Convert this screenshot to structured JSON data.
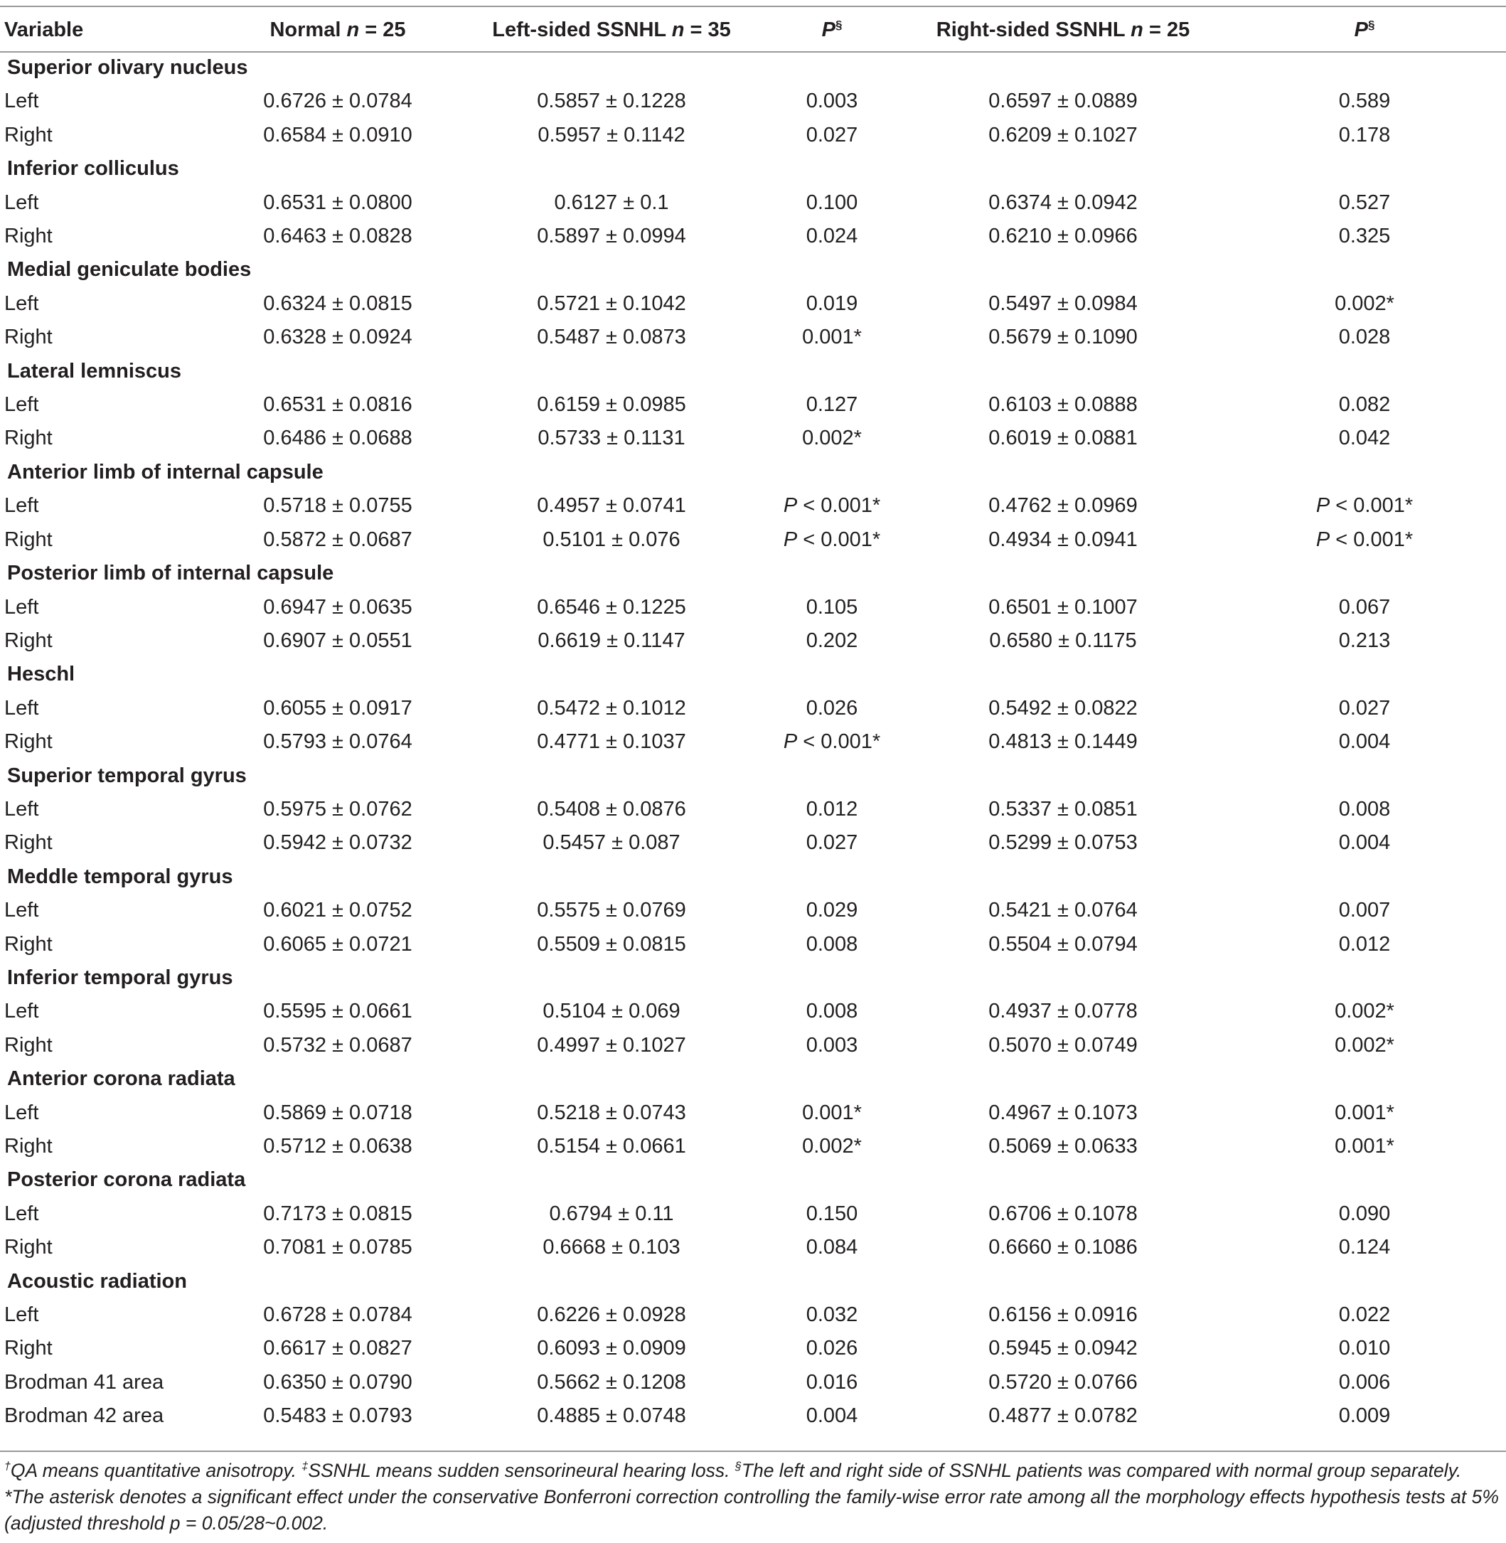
{
  "header": {
    "variable": "Variable",
    "normal": "Normal",
    "normal_n": "n",
    "normal_count": "= 25",
    "left": "Left-sided SSNHL",
    "left_n": "n",
    "left_count": "= 35",
    "p1": "P",
    "p1_mark": "§",
    "right": "Right-sided SSNHL",
    "right_n": "n",
    "right_count": "= 25",
    "p2": "P",
    "p2_mark": "§"
  },
  "groups": [
    {
      "title": "Superior olivary nucleus",
      "rows": [
        {
          "side": "Left",
          "normal": "0.6726 ± 0.0784",
          "left": "0.5857 ± 0.1228",
          "p1": "0.003",
          "right": "0.6597 ± 0.0889",
          "p2": "0.589"
        },
        {
          "side": "Right",
          "normal": "0.6584 ± 0.0910",
          "left": "0.5957 ± 0.1142",
          "p1": "0.027",
          "right": "0.6209 ± 0.1027",
          "p2": "0.178"
        }
      ]
    },
    {
      "title": "Inferior colliculus",
      "rows": [
        {
          "side": "Left",
          "normal": "0.6531 ± 0.0800",
          "left": "0.6127 ± 0.1",
          "p1": "0.100",
          "right": "0.6374 ± 0.0942",
          "p2": "0.527"
        },
        {
          "side": "Right",
          "normal": "0.6463 ± 0.0828",
          "left": "0.5897 ± 0.0994",
          "p1": "0.024",
          "right": "0.6210 ± 0.0966",
          "p2": "0.325"
        }
      ]
    },
    {
      "title": "Medial geniculate bodies",
      "rows": [
        {
          "side": "Left",
          "normal": "0.6324 ± 0.0815",
          "left": "0.5721 ± 0.1042",
          "p1": "0.019",
          "right": "0.5497 ± 0.0984",
          "p2": "0.002*"
        },
        {
          "side": "Right",
          "normal": "0.6328 ± 0.0924",
          "left": "0.5487 ± 0.0873",
          "p1": "0.001*",
          "right": "0.5679 ± 0.1090",
          "p2": "0.028"
        }
      ]
    },
    {
      "title": "Lateral lemniscus",
      "rows": [
        {
          "side": "Left",
          "normal": "0.6531 ± 0.0816",
          "left": "0.6159 ± 0.0985",
          "p1": "0.127",
          "right": "0.6103 ± 0.0888",
          "p2": "0.082"
        },
        {
          "side": "Right",
          "normal": "0.6486 ± 0.0688",
          "left": "0.5733 ± 0.1131",
          "p1": "0.002*",
          "right": "0.6019 ± 0.0881",
          "p2": "0.042"
        }
      ]
    },
    {
      "title": "Anterior limb of internal capsule",
      "rows": [
        {
          "side": "Left",
          "normal": "0.5718 ± 0.0755",
          "left": "0.4957 ± 0.0741",
          "p1": "P < 0.001*",
          "right": "0.4762 ± 0.0969",
          "p2": "P < 0.001*"
        },
        {
          "side": "Right",
          "normal": "0.5872 ± 0.0687",
          "left": "0.5101 ± 0.076",
          "p1": "P < 0.001*",
          "right": "0.4934 ± 0.0941",
          "p2": "P < 0.001*"
        }
      ]
    },
    {
      "title": "Posterior limb of internal capsule",
      "rows": [
        {
          "side": "Left",
          "normal": "0.6947 ± 0.0635",
          "left": "0.6546 ± 0.1225",
          "p1": "0.105",
          "right": "0.6501 ± 0.1007",
          "p2": "0.067"
        },
        {
          "side": "Right",
          "normal": "0.6907 ± 0.0551",
          "left": "0.6619 ± 0.1147",
          "p1": "0.202",
          "right": "0.6580 ± 0.1175",
          "p2": "0.213"
        }
      ]
    },
    {
      "title": "Heschl",
      "rows": [
        {
          "side": "Left",
          "normal": "0.6055 ± 0.0917",
          "left": "0.5472 ± 0.1012",
          "p1": "0.026",
          "right": "0.5492 ± 0.0822",
          "p2": "0.027"
        },
        {
          "side": "Right",
          "normal": "0.5793 ± 0.0764",
          "left": "0.4771 ± 0.1037",
          "p1": "P < 0.001*",
          "right": "0.4813 ± 0.1449",
          "p2": "0.004"
        }
      ]
    },
    {
      "title": "Superior temporal gyrus",
      "rows": [
        {
          "side": "Left",
          "normal": "0.5975 ± 0.0762",
          "left": "0.5408 ± 0.0876",
          "p1": "0.012",
          "right": "0.5337 ± 0.0851",
          "p2": "0.008"
        },
        {
          "side": "Right",
          "normal": "0.5942 ± 0.0732",
          "left": "0.5457 ± 0.087",
          "p1": "0.027",
          "right": "0.5299 ± 0.0753",
          "p2": "0.004"
        }
      ]
    },
    {
      "title": "Meddle temporal gyrus",
      "rows": [
        {
          "side": "Left",
          "normal": "0.6021 ± 0.0752",
          "left": "0.5575 ± 0.0769",
          "p1": "0.029",
          "right": "0.5421 ± 0.0764",
          "p2": "0.007"
        },
        {
          "side": "Right",
          "normal": "0.6065 ± 0.0721",
          "left": "0.5509 ± 0.0815",
          "p1": "0.008",
          "right": "0.5504 ± 0.0794",
          "p2": "0.012"
        }
      ]
    },
    {
      "title": "Inferior temporal gyrus",
      "rows": [
        {
          "side": "Left",
          "normal": "0.5595 ± 0.0661",
          "left": "0.5104 ± 0.069",
          "p1": "0.008",
          "right": "0.4937 ± 0.0778",
          "p2": "0.002*"
        },
        {
          "side": "Right",
          "normal": "0.5732 ± 0.0687",
          "left": "0.4997 ± 0.1027",
          "p1": "0.003",
          "right": "0.5070 ± 0.0749",
          "p2": "0.002*"
        }
      ]
    },
    {
      "title": "Anterior corona radiata",
      "rows": [
        {
          "side": "Left",
          "normal": "0.5869 ± 0.0718",
          "left": "0.5218 ± 0.0743",
          "p1": "0.001*",
          "right": "0.4967 ± 0.1073",
          "p2": "0.001*"
        },
        {
          "side": "Right",
          "normal": "0.5712 ± 0.0638",
          "left": "0.5154 ± 0.0661",
          "p1": "0.002*",
          "right": "0.5069 ± 0.0633",
          "p2": "0.001*"
        }
      ]
    },
    {
      "title": "Posterior corona radiata",
      "rows": [
        {
          "side": "Left",
          "normal": "0.7173 ± 0.0815",
          "left": "0.6794 ± 0.11",
          "p1": "0.150",
          "right": "0.6706 ± 0.1078",
          "p2": "0.090"
        },
        {
          "side": "Right",
          "normal": "0.7081 ± 0.0785",
          "left": "0.6668 ± 0.103",
          "p1": "0.084",
          "right": "0.6660 ± 0.1086",
          "p2": "0.124"
        }
      ]
    },
    {
      "title": "Acoustic radiation",
      "rows": [
        {
          "side": "Left",
          "normal": "0.6728 ± 0.0784",
          "left": "0.6226 ± 0.0928",
          "p1": "0.032",
          "right": "0.6156 ± 0.0916",
          "p2": "0.022"
        },
        {
          "side": "Right",
          "normal": "0.6617 ± 0.0827",
          "left": "0.6093 ± 0.0909",
          "p1": "0.026",
          "right": "0.5945 ± 0.0942",
          "p2": "0.010"
        },
        {
          "side": "Brodman 41 area",
          "normal": "0.6350 ± 0.0790",
          "left": "0.5662 ± 0.1208",
          "p1": "0.016",
          "right": "0.5720 ± 0.0766",
          "p2": "0.006"
        },
        {
          "side": "Brodman 42 area",
          "normal": "0.5483 ± 0.0793",
          "left": "0.4885 ± 0.0748",
          "p1": "0.004",
          "right": "0.4877 ± 0.0782",
          "p2": "0.009"
        }
      ]
    }
  ],
  "footnote": {
    "dagger": "†",
    "qa": "QA means quantitative anisotropy.",
    "ddagger": "‡",
    "ssnhl": "SSNHL means sudden sensorineural hearing loss.",
    "section": "§",
    "sides": "The left and right side of SSNHL patients was compared with normal group separately.",
    "asterisk": "*The asterisk denotes a significant effect under the conservative Bonferroni correction controlling the family-wise error rate among all the morphology effects hypothesis tests at 5% (adjusted threshold p = 0.05/28~0.002."
  }
}
